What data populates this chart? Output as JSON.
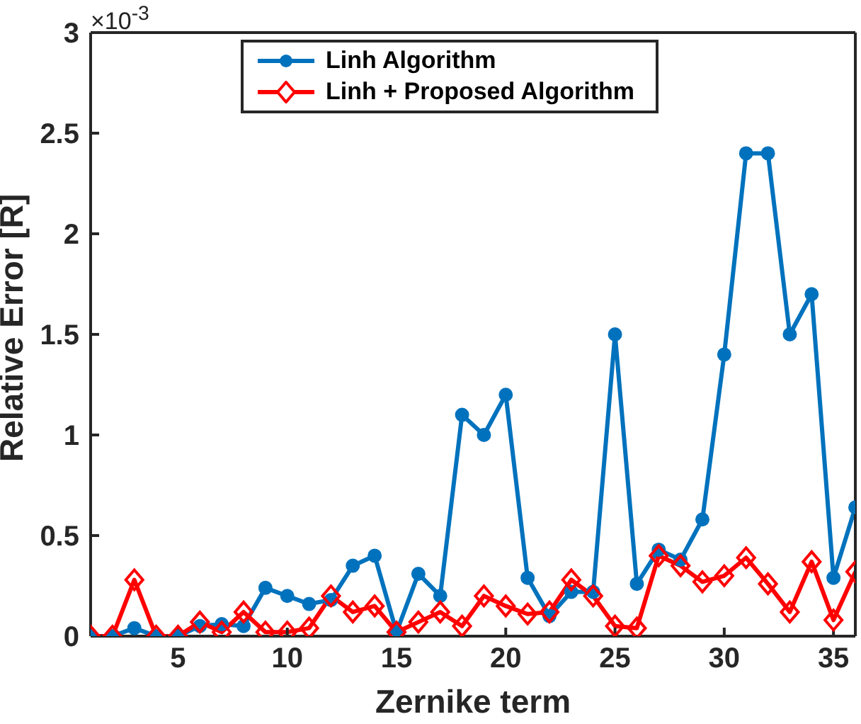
{
  "chart_data": {
    "type": "line",
    "xlabel": "Zernike term",
    "ylabel": "Relative Error [R]",
    "annotations": [
      "×10$^{-3}$"
    ],
    "x": [
      1,
      2,
      3,
      4,
      5,
      6,
      7,
      8,
      9,
      10,
      11,
      12,
      13,
      14,
      15,
      16,
      17,
      18,
      19,
      20,
      21,
      22,
      23,
      24,
      25,
      26,
      27,
      28,
      29,
      30,
      31,
      32,
      33,
      34,
      35,
      36
    ],
    "series": [
      {
        "name": "Linh Algorithm",
        "color": "#0072bd",
        "marker": "circle",
        "values": [
          0,
          0,
          0.04,
          0,
          0,
          0.05,
          0.06,
          0.05,
          0.24,
          0.2,
          0.16,
          0.18,
          0.35,
          0.4,
          0.02,
          0.31,
          0.2,
          1.1,
          1.0,
          1.2,
          0.29,
          0.1,
          0.22,
          0.22,
          1.5,
          0.26,
          0.43,
          0.38,
          0.58,
          1.4,
          2.4,
          2.4,
          1.5,
          1.7,
          0.29,
          0.64
        ]
      },
      {
        "name": "Linh + Proposed Algorithm",
        "color": "#ff0000",
        "marker": "diamond",
        "values": [
          0,
          0,
          0.28,
          0,
          0,
          0.07,
          0.02,
          0.12,
          0.02,
          0.02,
          0.04,
          0.2,
          0.12,
          0.15,
          0.02,
          0.07,
          0.12,
          0.05,
          0.2,
          0.15,
          0.11,
          0.12,
          0.28,
          0.2,
          0.05,
          0.04,
          0.4,
          0.35,
          0.27,
          0.3,
          0.39,
          0.26,
          0.12,
          0.37,
          0.08,
          0.32
        ]
      }
    ],
    "xlim": [
      1,
      36
    ],
    "xticks": [
      5,
      10,
      15,
      20,
      25,
      30,
      35
    ],
    "ylim": [
      0,
      3
    ],
    "yticks": [
      0,
      0.5,
      1,
      1.5,
      2,
      2.5,
      3
    ],
    "grid": false,
    "legend": "top",
    "line_style": "solid"
  }
}
